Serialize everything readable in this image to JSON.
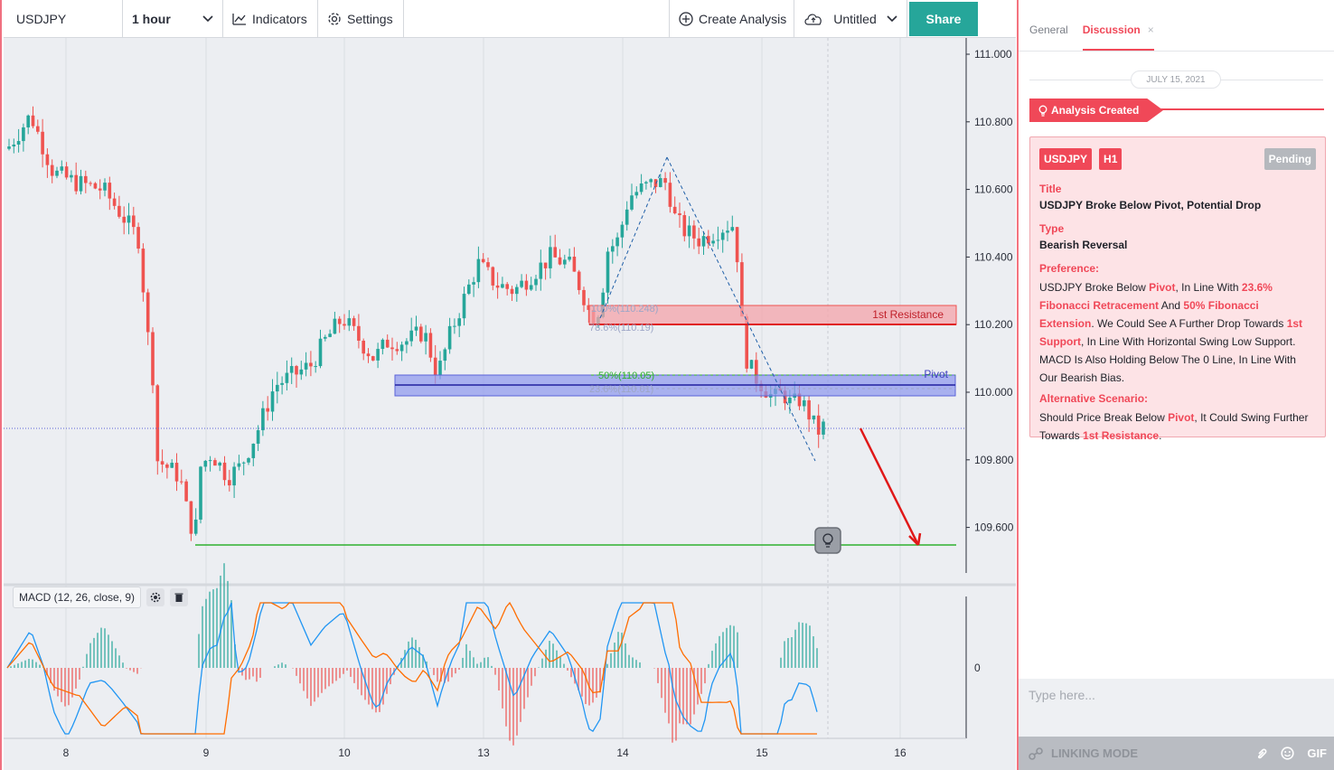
{
  "toolbar": {
    "symbol": "USDJPY",
    "interval": "1 hour",
    "indicators_label": "Indicators",
    "settings_label": "Settings",
    "create_analysis_label": "Create Analysis",
    "layout_name": "Untitled",
    "share_label": "Share"
  },
  "chart": {
    "price_axis": [
      "111.000",
      "110.800",
      "110.600",
      "110.400",
      "110.200",
      "110.000",
      "109.800",
      "109.600"
    ],
    "time_axis": [
      "8",
      "9",
      "10",
      "13",
      "14",
      "15",
      "16"
    ],
    "macd_zero_label": "0",
    "resistance_label": "1st Resistance",
    "pivot_label": "Pivot",
    "fib_labels": {
      "fib_100": "100%(110.248)",
      "fib_786": "78.6%(110.19)",
      "fib_50": "50%(110.05)",
      "fib_236": "23.6%(110.01)"
    },
    "macd_legend": "MACD (12, 26, close, 9)"
  },
  "chart_data": {
    "type": "candlestick",
    "symbol": "USDJPY",
    "interval": "1 hour",
    "ylim": [
      109.47,
      111.02
    ],
    "levels": {
      "resistance_top": 110.25,
      "resistance_bottom": 110.195,
      "pivot_top": 110.05,
      "pivot_bottom": 109.985,
      "pivot_line": 110.02,
      "support": 109.55,
      "current_price": 109.89
    },
    "x_ticks": [
      "8",
      "9",
      "10",
      "13",
      "14",
      "15",
      "16"
    ],
    "macd": {
      "fast": 12,
      "slow": 26,
      "source": "close",
      "signal": 9
    }
  },
  "panel": {
    "tab_general": "General",
    "tab_discussion": "Discussion",
    "tab_close": "×",
    "date": "JULY 15, 2021",
    "created_label": "Analysis Created",
    "card": {
      "badge_symbol": "USDJPY",
      "badge_tf": "H1",
      "status": "Pending",
      "title_label": "Title",
      "title_value": "USDJPY Broke Below Pivot, Potential Drop",
      "type_label": "Type",
      "type_value": "Bearish Reversal",
      "pref_label": "Preference:",
      "pref_parts": [
        "USDJPY Broke Below ",
        "Pivot",
        ", In Line With ",
        "23.6% Fibonacci Retracement",
        " And ",
        "50% Fibonacci Extension",
        ". We Could See A Further Drop Towards ",
        "1st Support",
        ", In Line With Horizontal Swing Low Support. MACD Is Also Holding Below The 0 Line, In Line With Our Bearish Bias."
      ],
      "alt_label": "Alternative Scenario:",
      "alt_parts": [
        "Should Price Break Below ",
        "Pivot",
        ", It Could Swing Further Towards ",
        "1st Resistance",
        "."
      ]
    },
    "input_placeholder": "Type here...",
    "linking_label": "LINKING MODE",
    "gif_label": "GIF"
  },
  "colors": {
    "accent": "#f04858",
    "share": "#26a69a",
    "up": "#26a69a",
    "down": "#ef5350",
    "support": "#2fb02f",
    "pivot": "#3f3fbf"
  }
}
